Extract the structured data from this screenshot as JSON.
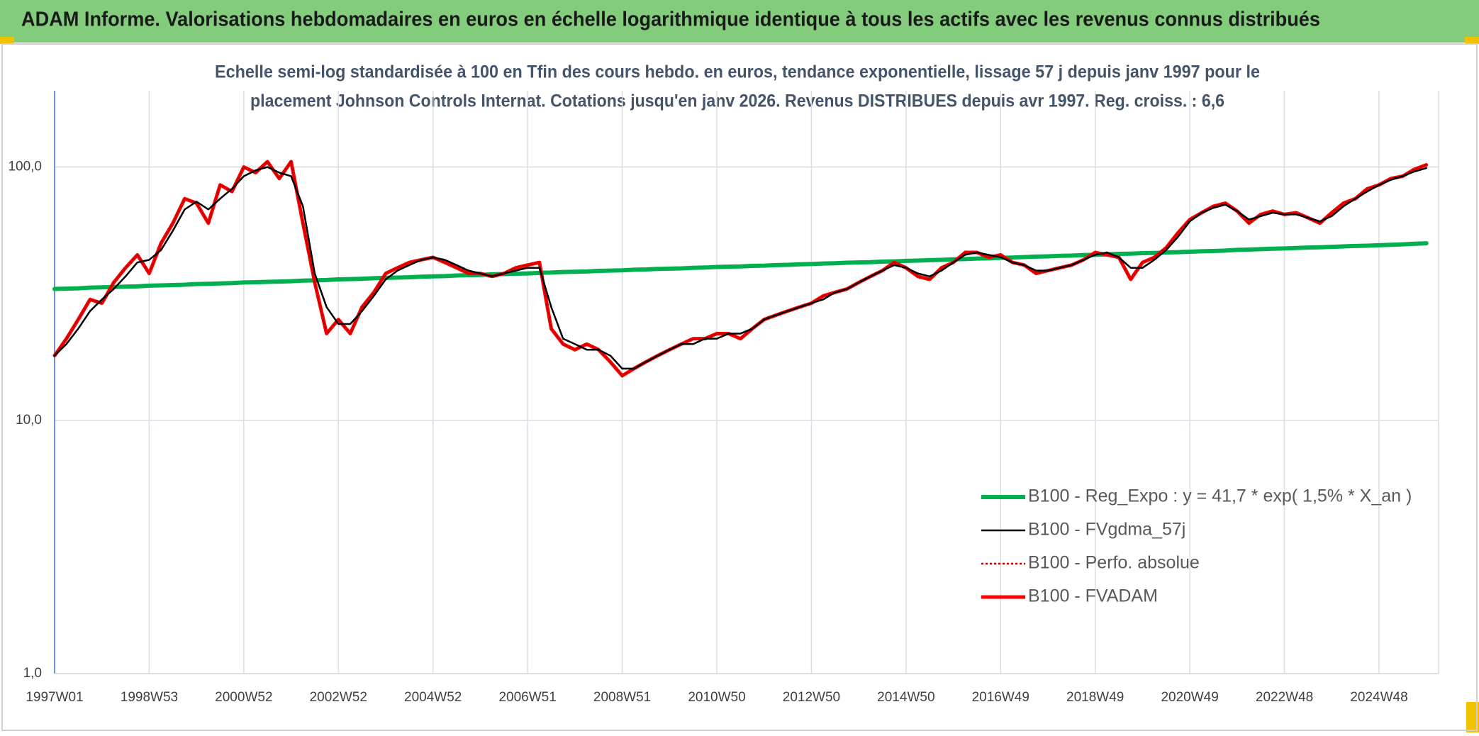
{
  "header": {
    "title": "ADAM Informe. Valorisations hebdomadaires en euros en échelle logarithmique identique à tous les actifs avec les revenus connus distribués"
  },
  "chart_data": {
    "type": "line",
    "subtitle": [
      "Echelle semi-log standardisée à 100 en Tfin des cours hebdo. en euros, tendance exponentielle, lissage 57 j depuis janv 1997 pour le",
      "placement Johnson Controls Internat. Cotations jusqu'en janv 2026. Revenus DISTRIBUES depuis avr 1997. Reg. croiss. : 6,6"
    ],
    "yscale": "log",
    "ylim": [
      1,
      200
    ],
    "yticks": [
      {
        "value": 1,
        "label": "1,0"
      },
      {
        "value": 10,
        "label": "10,0"
      },
      {
        "value": 100,
        "label": "100,0"
      }
    ],
    "grid": true,
    "legend_position": "lower right",
    "categories": [
      "1997W01",
      null,
      null,
      null,
      null,
      null,
      null,
      null,
      "1998W53",
      null,
      null,
      null,
      null,
      null,
      null,
      null,
      "2000W52",
      null,
      null,
      null,
      null,
      null,
      null,
      null,
      "2002W52",
      null,
      null,
      null,
      null,
      null,
      null,
      null,
      "2004W52",
      null,
      null,
      null,
      null,
      null,
      null,
      null,
      "2006W51",
      null,
      null,
      null,
      null,
      null,
      null,
      null,
      "2008W51",
      null,
      null,
      null,
      null,
      null,
      null,
      null,
      "2010W50",
      null,
      null,
      null,
      null,
      null,
      null,
      null,
      "2012W50",
      null,
      null,
      null,
      null,
      null,
      null,
      null,
      "2014W50",
      null,
      null,
      null,
      null,
      null,
      null,
      null,
      "2016W49",
      null,
      null,
      null,
      null,
      null,
      null,
      null,
      "2018W49",
      null,
      null,
      null,
      null,
      null,
      null,
      null,
      "2020W49",
      null,
      null,
      null,
      null,
      null,
      null,
      null,
      "2022W48",
      null,
      null,
      null,
      null,
      null,
      null,
      null,
      "2024W48",
      null,
      null,
      null,
      null
    ],
    "series": [
      {
        "name": "B100 - Reg_Expo : y = 41,7 * exp( 1,5% *  X_an )",
        "color": "#00b050",
        "style": "solid",
        "width": 6,
        "order": 0,
        "values": [
          33.0,
          33.1,
          33.2,
          33.4,
          33.5,
          33.6,
          33.7,
          33.8,
          34.0,
          34.1,
          34.2,
          34.3,
          34.5,
          34.6,
          34.7,
          34.8,
          35.0,
          35.1,
          35.2,
          35.3,
          35.4,
          35.6,
          35.7,
          35.8,
          36.0,
          36.1,
          36.2,
          36.4,
          36.5,
          36.6,
          36.7,
          36.9,
          37.0,
          37.1,
          37.3,
          37.4,
          37.5,
          37.7,
          37.8,
          37.9,
          38.0,
          38.2,
          38.3,
          38.5,
          38.6,
          38.7,
          38.9,
          39.0,
          39.1,
          39.3,
          39.4,
          39.6,
          39.7,
          39.8,
          40.0,
          40.1,
          40.3,
          40.4,
          40.5,
          40.7,
          40.8,
          41.0,
          41.1,
          41.3,
          41.4,
          41.6,
          41.7,
          41.9,
          42.0,
          42.1,
          42.3,
          42.4,
          42.6,
          42.7,
          42.9,
          43.0,
          43.2,
          43.3,
          43.5,
          43.6,
          43.8,
          43.9,
          44.1,
          44.3,
          44.4,
          44.6,
          44.7,
          44.9,
          45.0,
          45.2,
          45.4,
          45.5,
          45.7,
          45.8,
          46.0,
          46.1,
          46.3,
          46.5,
          46.6,
          46.8,
          47.1,
          47.2,
          47.4,
          47.6,
          47.7,
          47.9,
          48.1,
          48.2,
          48.4,
          48.6,
          48.8,
          48.9,
          49.1,
          49.3,
          49.5,
          49.8,
          50.0
        ]
      },
      {
        "name": "B100 - FVgdma_57j",
        "color": "#000000",
        "style": "solid",
        "width": 2.5,
        "order": 3,
        "values": [
          18,
          20,
          23,
          27,
          30,
          33,
          37,
          42,
          43,
          47,
          56,
          68,
          73,
          68,
          75,
          82,
          92,
          97,
          100,
          95,
          92,
          70,
          38,
          28,
          24,
          24,
          27,
          31,
          36,
          39,
          41,
          43,
          44,
          43,
          41,
          39,
          38,
          37,
          38,
          39,
          40,
          40,
          28,
          21,
          20,
          19,
          19,
          18,
          16,
          16,
          17,
          18,
          19,
          20,
          20,
          21,
          21,
          22,
          22,
          23,
          25,
          26,
          27,
          28,
          29,
          30,
          32,
          33,
          35,
          37,
          39,
          41,
          40,
          38,
          37,
          39,
          42,
          45,
          46,
          45,
          44,
          42,
          41,
          39,
          39,
          40,
          41,
          43,
          45,
          46,
          44,
          40,
          40,
          43,
          47,
          53,
          61,
          66,
          69,
          71,
          67,
          62,
          64,
          66,
          65,
          65,
          63,
          61,
          64,
          70,
          75,
          80,
          85,
          89,
          92,
          96,
          99
        ]
      },
      {
        "name": "B100 - Perfo. absolue",
        "color": "#c00000",
        "style": "dotted",
        "width": 2,
        "order": 2,
        "values": [
          18,
          21,
          25,
          30,
          29,
          35,
          40,
          45,
          38,
          50,
          60,
          75,
          72,
          60,
          85,
          80,
          100,
          95,
          105,
          90,
          105,
          60,
          35,
          22,
          25,
          22,
          28,
          32,
          38,
          40,
          42,
          43,
          44,
          42,
          40,
          38,
          38,
          37,
          38,
          40,
          41,
          42,
          23,
          20,
          19,
          20,
          19,
          17,
          15,
          16,
          17,
          18,
          19,
          20,
          21,
          21,
          22,
          22,
          21,
          23,
          25,
          26,
          27,
          28,
          29,
          31,
          32,
          33,
          35,
          37,
          39,
          42,
          40,
          37,
          36,
          40,
          42,
          46,
          46,
          44,
          45,
          42,
          41,
          38,
          39,
          40,
          41,
          43,
          46,
          45,
          44,
          36,
          42,
          44,
          48,
          55,
          62,
          66,
          70,
          72,
          67,
          60,
          65,
          67,
          65,
          66,
          63,
          60,
          66,
          72,
          75,
          82,
          85,
          90,
          92,
          98,
          102
        ]
      },
      {
        "name": "B100 - FVADAM",
        "color": "#ff0000",
        "style": "solid",
        "width": 5,
        "order": 1,
        "values": [
          18,
          21,
          25,
          30,
          29,
          35,
          40,
          45,
          38,
          50,
          60,
          75,
          72,
          60,
          85,
          80,
          100,
          95,
          105,
          90,
          105,
          60,
          35,
          22,
          25,
          22,
          28,
          32,
          38,
          40,
          42,
          43,
          44,
          42,
          40,
          38,
          38,
          37,
          38,
          40,
          41,
          42,
          23,
          20,
          19,
          20,
          19,
          17,
          15,
          16,
          17,
          18,
          19,
          20,
          21,
          21,
          22,
          22,
          21,
          23,
          25,
          26,
          27,
          28,
          29,
          31,
          32,
          33,
          35,
          37,
          39,
          42,
          40,
          37,
          36,
          40,
          42,
          46,
          46,
          44,
          45,
          42,
          41,
          38,
          39,
          40,
          41,
          43,
          46,
          45,
          44,
          36,
          42,
          44,
          48,
          55,
          62,
          66,
          70,
          72,
          67,
          60,
          65,
          67,
          65,
          66,
          63,
          60,
          66,
          72,
          75,
          82,
          85,
          90,
          92,
          98,
          102
        ]
      }
    ]
  }
}
